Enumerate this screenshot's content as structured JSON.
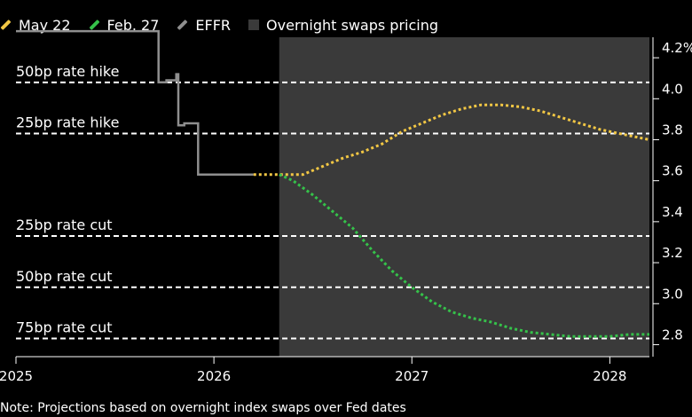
{
  "legend": {
    "may22": "May 22",
    "feb27": "Feb. 27",
    "effr": "EFFR",
    "shade": "Overnight swaps pricing"
  },
  "note": "Note: Projections based on overnight index swaps over Fed dates",
  "colors": {
    "may22": "#f2c744",
    "feb27": "#35c24a",
    "effr": "#8f8f8f",
    "shade": "#3a3a3a",
    "ref": "#ffffff"
  },
  "chart_data": {
    "type": "line",
    "xlabel": "",
    "ylabel": "",
    "x_ticks": [
      "2025",
      "2026",
      "2027",
      "2028"
    ],
    "y_ticks": [
      {
        "label": "4.2%",
        "value": 4.2
      },
      {
        "label": "4.0",
        "value": 4.0
      },
      {
        "label": "3.8",
        "value": 3.8
      },
      {
        "label": "3.6",
        "value": 3.6
      },
      {
        "label": "3.4",
        "value": 3.4
      },
      {
        "label": "3.2",
        "value": 3.2
      },
      {
        "label": "3.0",
        "value": 3.0
      },
      {
        "label": "2.8",
        "value": 2.8
      }
    ],
    "xlim": [
      2025.0,
      2028.2
    ],
    "ylim": [
      2.75,
      4.3
    ],
    "shaded_region": {
      "label": "Overnight swaps pricing",
      "x_start": 2026.33,
      "x_end": 2028.2
    },
    "reference_lines": [
      {
        "label": "50bp rate hike",
        "value": 4.08
      },
      {
        "label": "25bp rate hike",
        "value": 3.83
      },
      {
        "label": "25bp rate cut",
        "value": 3.33
      },
      {
        "label": "50bp rate cut",
        "value": 3.08
      },
      {
        "label": "75bp rate cut",
        "value": 2.83
      }
    ],
    "series": [
      {
        "name": "EFFR",
        "style": "step",
        "x": [
          2025.0,
          2025.72,
          2025.72,
          2025.76,
          2025.76,
          2025.81,
          2025.81,
          2025.82,
          2025.82,
          2025.85,
          2025.85,
          2025.92,
          2025.92,
          2026.2
        ],
        "y": [
          4.33,
          4.33,
          4.08,
          4.08,
          4.09,
          4.09,
          4.12,
          4.12,
          3.87,
          3.87,
          3.88,
          3.88,
          3.63,
          3.63
        ]
      },
      {
        "name": "May 22",
        "style": "dotted",
        "x": [
          2026.2,
          2026.33,
          2026.45,
          2026.55,
          2026.65,
          2026.75,
          2026.85,
          2026.95,
          2027.05,
          2027.15,
          2027.25,
          2027.35,
          2027.45,
          2027.55,
          2027.65,
          2027.75,
          2027.85,
          2027.95,
          2028.05,
          2028.15,
          2028.2
        ],
        "y": [
          3.63,
          3.63,
          3.63,
          3.67,
          3.71,
          3.74,
          3.78,
          3.84,
          3.88,
          3.92,
          3.95,
          3.97,
          3.97,
          3.96,
          3.94,
          3.91,
          3.88,
          3.85,
          3.83,
          3.81,
          3.8
        ]
      },
      {
        "name": "Feb. 27",
        "style": "dotted",
        "x": [
          2026.33,
          2026.4,
          2026.5,
          2026.6,
          2026.7,
          2026.8,
          2026.9,
          2027.0,
          2027.1,
          2027.2,
          2027.3,
          2027.4,
          2027.5,
          2027.6,
          2027.7,
          2027.8,
          2027.9,
          2028.0,
          2028.1,
          2028.2
        ],
        "y": [
          3.63,
          3.6,
          3.53,
          3.45,
          3.37,
          3.26,
          3.16,
          3.08,
          3.01,
          2.96,
          2.93,
          2.91,
          2.88,
          2.86,
          2.85,
          2.84,
          2.84,
          2.84,
          2.85,
          2.85
        ]
      }
    ]
  }
}
